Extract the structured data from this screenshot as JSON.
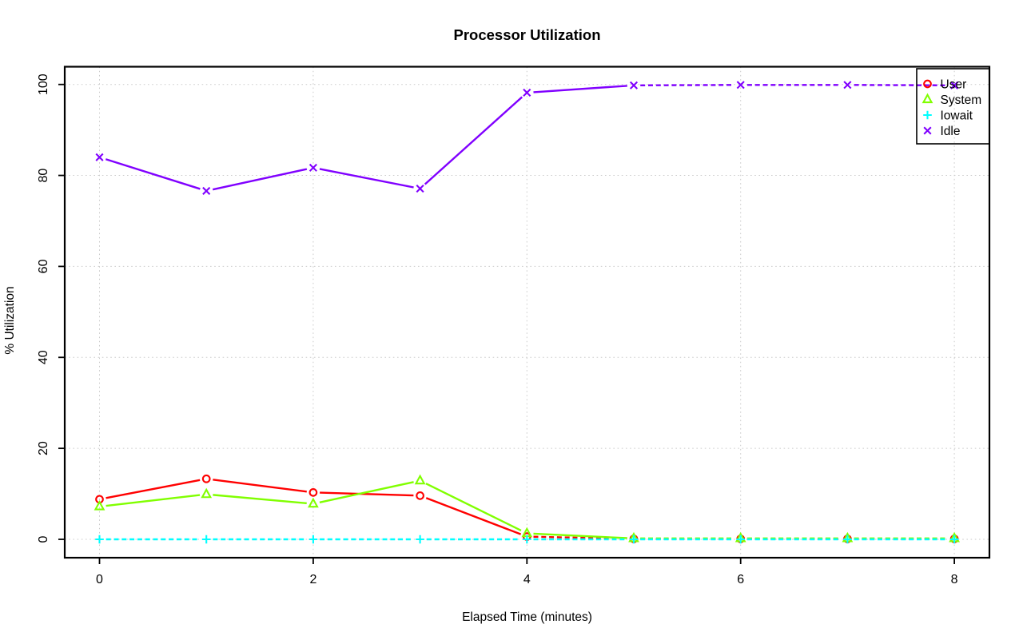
{
  "title": "Processor Utilization",
  "chart_data": {
    "type": "line",
    "title": "Processor Utilization",
    "xlabel": "Elapsed Time (minutes)",
    "ylabel": "% Utilization",
    "x": [
      0,
      1,
      2,
      3,
      4,
      5,
      6,
      7,
      8
    ],
    "xticks": [
      0,
      2,
      4,
      6,
      8
    ],
    "yticks": [
      0,
      20,
      40,
      60,
      80,
      100
    ],
    "xlim": [
      -0.33,
      8.33
    ],
    "ylim": [
      -4,
      104
    ],
    "grid": "dotted-lightgray-at-ticks",
    "grid_color": "#CBCBCB",
    "legend_position": "top-right",
    "line_style": "points-and-segments (R type=b)",
    "series": [
      {
        "name": "User",
        "color": "#FF0000",
        "marker": "circle",
        "values": [
          8.8,
          13.3,
          10.3,
          9.6,
          0.6,
          0.1,
          0.1,
          0.1,
          0.1
        ]
      },
      {
        "name": "System",
        "color": "#80FF00",
        "marker": "triangle",
        "values": [
          7.2,
          9.9,
          7.8,
          12.9,
          1.3,
          0.2,
          0.2,
          0.2,
          0.2
        ]
      },
      {
        "name": "Iowait",
        "color": "#00FFFF",
        "marker": "plus",
        "values": [
          0.0,
          0.0,
          0.0,
          0.0,
          0.0,
          0.0,
          0.0,
          0.0,
          0.0
        ]
      },
      {
        "name": "Idle",
        "color": "#8000FF",
        "marker": "x",
        "values": [
          84.0,
          76.6,
          81.7,
          77.1,
          98.2,
          99.8,
          99.9,
          99.9,
          99.8
        ]
      }
    ]
  }
}
